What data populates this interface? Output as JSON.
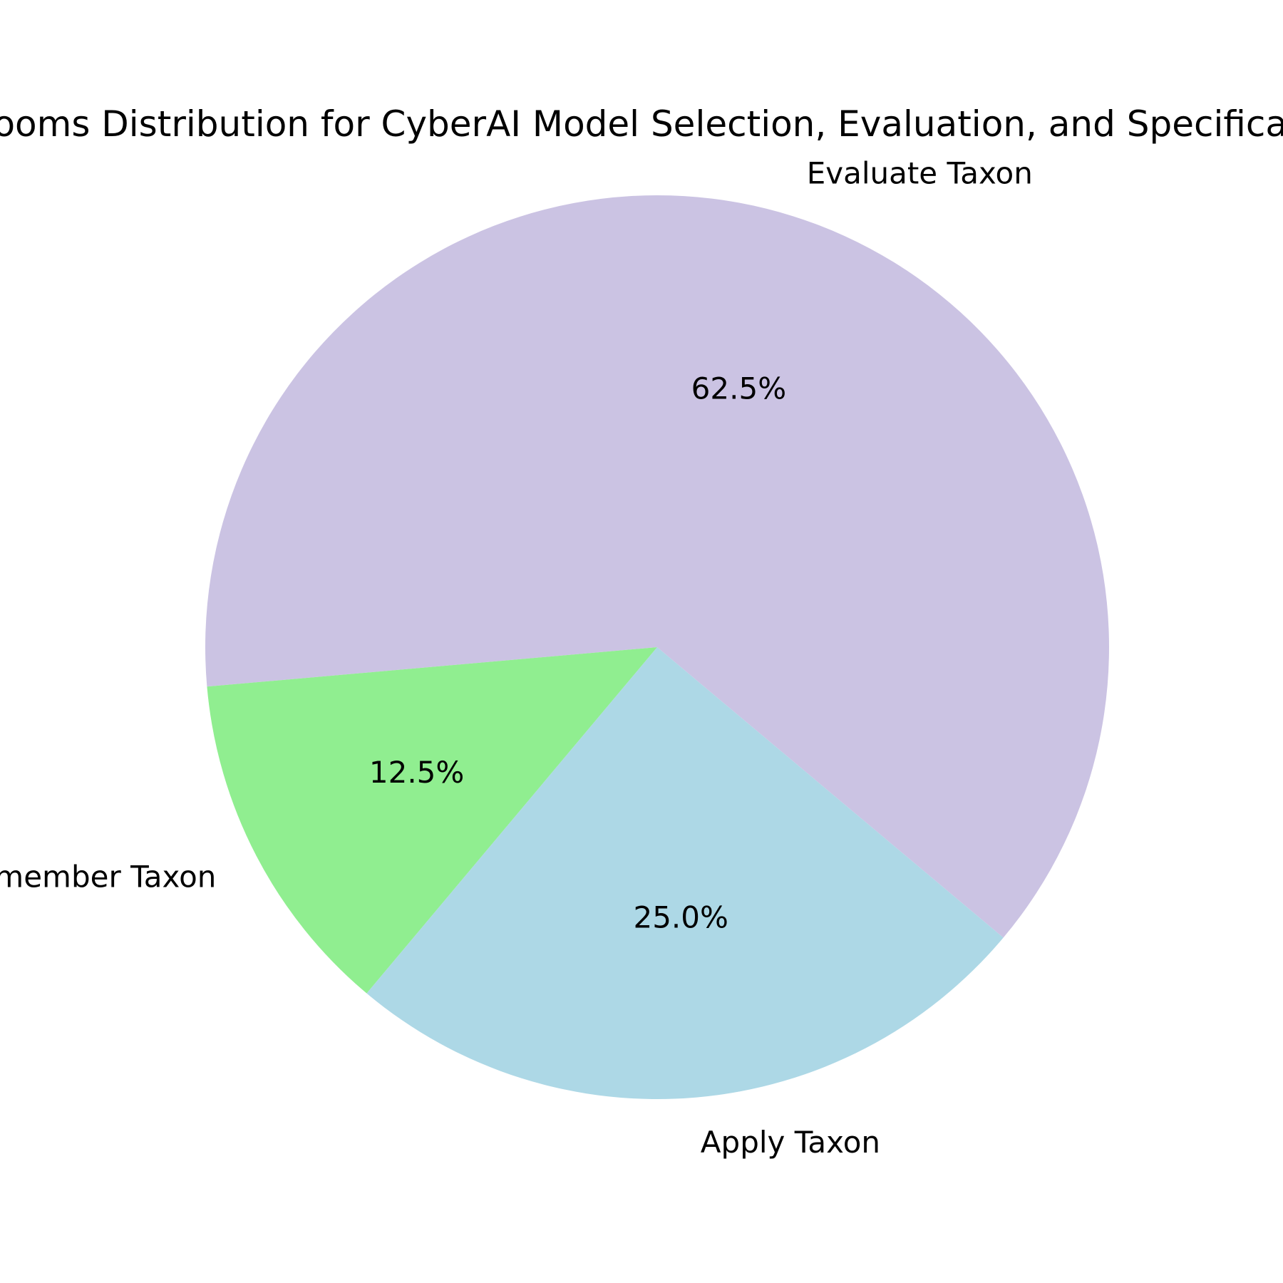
{
  "chart_data": {
    "type": "pie",
    "title": "Blooms Distribution for CyberAI Model Selection, Evaluation, and Specification",
    "slices": [
      {
        "label": "Evaluate Taxon",
        "value": 62.5,
        "pct_label": "62.5%",
        "color": "#cbc3e3"
      },
      {
        "label": "Remember Taxon",
        "value": 12.5,
        "pct_label": "12.5%",
        "color": "#90ee90"
      },
      {
        "label": "Apply Taxon",
        "value": 25.0,
        "pct_label": "25.0%",
        "color": "#add8e6"
      }
    ],
    "start_angle_deg": 320,
    "direction": "counterclockwise",
    "legend": "none"
  }
}
